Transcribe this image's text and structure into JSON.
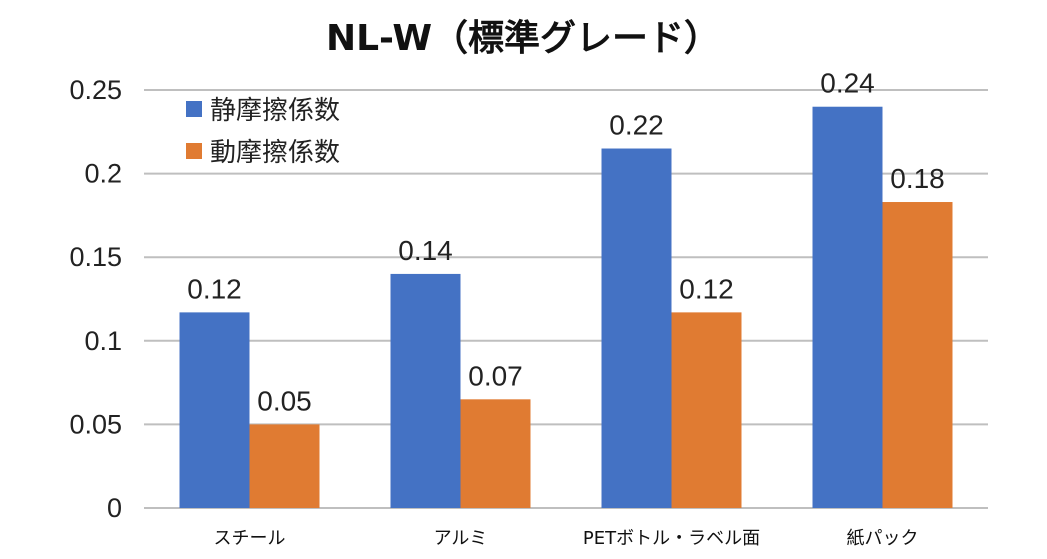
{
  "chart_data": {
    "type": "bar",
    "title": "NL-W（標準グレード）",
    "categories": [
      "スチール",
      "アルミ",
      "PETボトル・ラベル面",
      "紙パック"
    ],
    "series": [
      {
        "name": "静摩擦係数",
        "color": "#4472C4",
        "values": [
          0.117,
          0.14,
          0.215,
          0.24
        ],
        "labels": [
          "0.12",
          "0.14",
          "0.22",
          "0.24"
        ]
      },
      {
        "name": "動摩擦係数",
        "color": "#E07B32",
        "values": [
          0.05,
          0.065,
          0.117,
          0.183
        ],
        "labels": [
          "0.05",
          "0.07",
          "0.12",
          "0.18"
        ]
      }
    ],
    "ylim": [
      0,
      0.25
    ],
    "yticks": [
      0,
      0.05,
      0.1,
      0.15,
      0.2,
      0.25
    ],
    "ytick_labels": [
      "0",
      "0.05",
      "0.1",
      "0.15",
      "0.2",
      "0.25"
    ],
    "grid": true,
    "legend": "top-left"
  }
}
